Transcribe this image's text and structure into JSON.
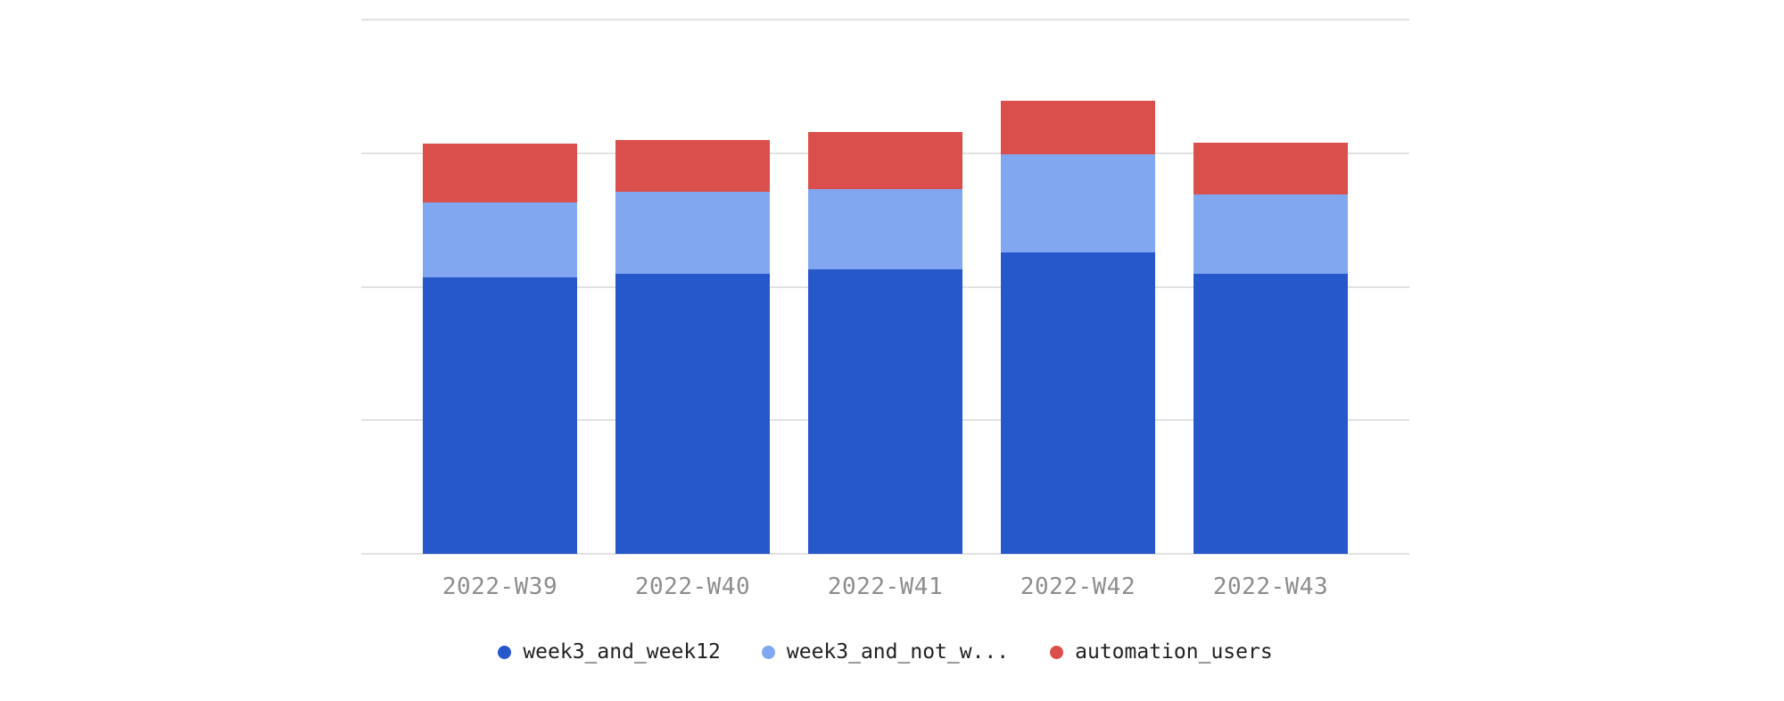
{
  "chart_data": {
    "type": "bar",
    "stacked": true,
    "title": "",
    "xlabel": "",
    "ylabel": "",
    "categories": [
      "2022-W39",
      "2022-W40",
      "2022-W41",
      "2022-W42",
      "2022-W43"
    ],
    "series": [
      {
        "name": "week3_and_week12",
        "color": "#2657cb",
        "values": [
          2.07,
          2.1,
          2.13,
          2.26,
          2.1
        ]
      },
      {
        "name": "week3_and_not_w...",
        "color": "#80a7f0",
        "values": [
          0.56,
          0.61,
          0.6,
          0.73,
          0.59
        ]
      },
      {
        "name": "automation_users",
        "color": "#da4f4b",
        "values": [
          0.44,
          0.39,
          0.43,
          0.4,
          0.39
        ]
      }
    ],
    "ylim": [
      0,
      4
    ],
    "y_gridline_values": [
      0,
      1,
      2,
      3,
      4
    ],
    "y_tick_labels_visible": false,
    "grid": "horizontal",
    "legend_position": "bottom-center"
  },
  "colors": {
    "background": "#ffffff",
    "gridline": "#e2e2e2",
    "x_label_text": "#8d8d8d",
    "legend_text": "#212121"
  }
}
